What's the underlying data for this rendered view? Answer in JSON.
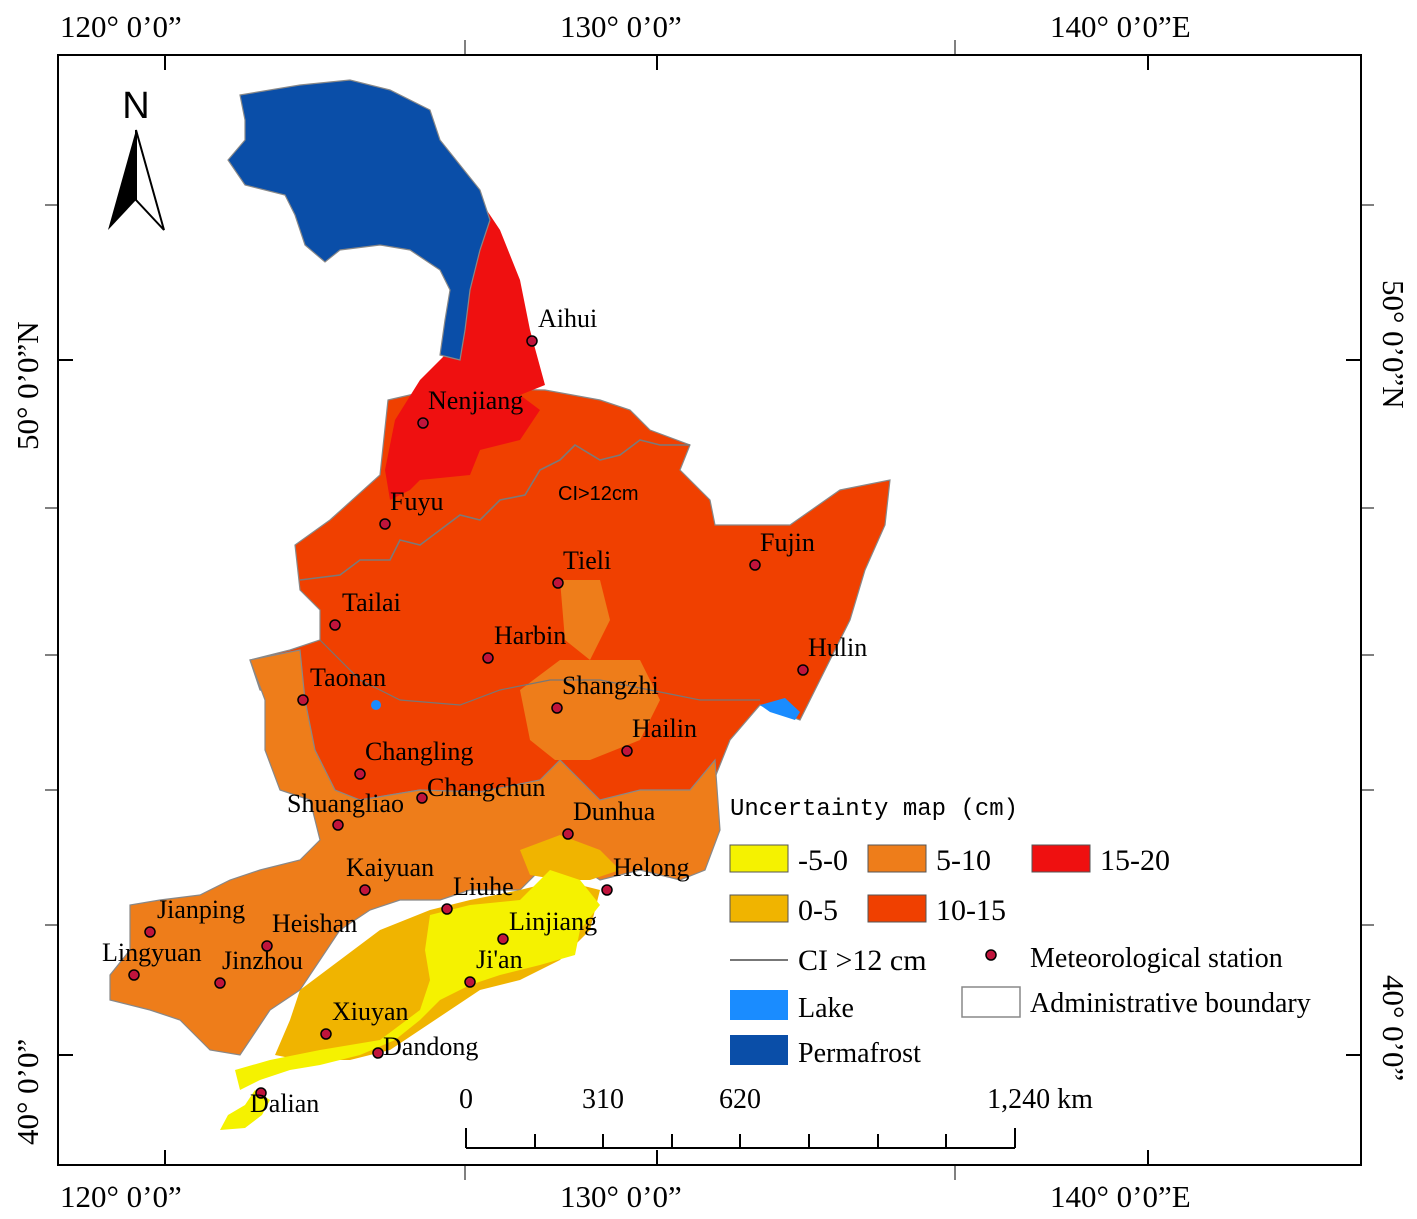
{
  "top_axis": {
    "lon1": "120° 0’0”",
    "lon2": "130° 0’0”",
    "lon3": "140° 0’0”E"
  },
  "bottom_axis": {
    "lon1": "120° 0’0”",
    "lon2": "130° 0’0”",
    "lon3": "140° 0’0”E"
  },
  "left_axis": {
    "lat1": "50° 0’0”N",
    "lat2": "40° 0’0”"
  },
  "right_axis": {
    "lat1": "50° 0’0”N",
    "lat2": "40° 0’0”"
  },
  "north_arrow": {
    "label": "N"
  },
  "ci_line_label": "CI>12cm",
  "stations": [
    {
      "name": "Aihui"
    },
    {
      "name": "Nenjiang"
    },
    {
      "name": "Fuyu"
    },
    {
      "name": "Tieli"
    },
    {
      "name": "Fujin"
    },
    {
      "name": "Tailai"
    },
    {
      "name": "Harbin"
    },
    {
      "name": "Hulin"
    },
    {
      "name": "Taonan"
    },
    {
      "name": "Shangzhi"
    },
    {
      "name": "Hailin"
    },
    {
      "name": "Changling"
    },
    {
      "name": "Changchun"
    },
    {
      "name": "Shuangliao"
    },
    {
      "name": "Dunhua"
    },
    {
      "name": "Kaiyuan"
    },
    {
      "name": "Helong"
    },
    {
      "name": "Liuhe"
    },
    {
      "name": "Jianping"
    },
    {
      "name": "Heishan"
    },
    {
      "name": "Linjiang"
    },
    {
      "name": "Lingyuan"
    },
    {
      "name": "Jinzhou"
    },
    {
      "name": "Ji'an"
    },
    {
      "name": "Xiuyan"
    },
    {
      "name": "Dandong"
    },
    {
      "name": "Dalian"
    }
  ],
  "legend": {
    "title": "Uncertainty map (cm)",
    "classes": [
      {
        "label": "-5-0",
        "color": "#f5f200"
      },
      {
        "label": "5-10",
        "color": "#ee7d1a"
      },
      {
        "label": "15-20",
        "color": "#ef1010"
      },
      {
        "label": "0-5",
        "color": "#f0b400"
      },
      {
        "label": "10-15",
        "color": "#f04000"
      }
    ],
    "ci_line": "CI >12 cm",
    "station": "Meteorological station",
    "lake": "Lake",
    "lake_color": "#1a8cff",
    "admin": "Administrative boundary",
    "permafrost": "Permafrost",
    "permafrost_color": "#0a4ea8"
  },
  "scale_bar": {
    "l0": "0",
    "l1": "310",
    "l2": "620",
    "l3": "1,240 km"
  }
}
